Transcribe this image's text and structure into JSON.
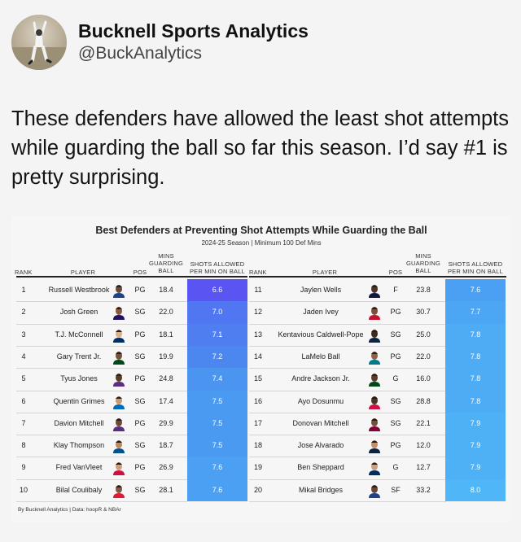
{
  "account": {
    "display_name": "Bucknell Sports Analytics",
    "handle": "@BuckAnalytics"
  },
  "tweet": {
    "text": "These defenders have allowed the least shot attempts while guarding the ball so far this season. I’d say #1 is pretty surprising."
  },
  "table": {
    "title": "Best Defenders at Preventing Shot Attempts While Guarding the Ball",
    "subtitle": "2024-25 Season | Minimum 100 Def Mins",
    "columns": {
      "rank": "RANK",
      "player": "PLAYER",
      "pos": "POS",
      "mins": "MINS GUARDING BALL",
      "shots": "SHOTS ALLOWED PER MIN ON BALL"
    },
    "footer": "By Bucknell Analytics | Data: hoopR & NBAr",
    "colors": {
      "best": "#5a55f2",
      "mid": "#4a8ff0",
      "worst": "#4fb7f7"
    },
    "rows": [
      {
        "rank": "1",
        "player": "Russell Westbrook",
        "pos": "PG",
        "mins": "18.4",
        "shots": "6.6"
      },
      {
        "rank": "2",
        "player": "Josh Green",
        "pos": "SG",
        "mins": "22.0",
        "shots": "7.0"
      },
      {
        "rank": "3",
        "player": "T.J. McConnell",
        "pos": "PG",
        "mins": "18.1",
        "shots": "7.1"
      },
      {
        "rank": "4",
        "player": "Gary Trent Jr.",
        "pos": "SG",
        "mins": "19.9",
        "shots": "7.2"
      },
      {
        "rank": "5",
        "player": "Tyus Jones",
        "pos": "PG",
        "mins": "24.8",
        "shots": "7.4"
      },
      {
        "rank": "6",
        "player": "Quentin Grimes",
        "pos": "SG",
        "mins": "17.4",
        "shots": "7.5"
      },
      {
        "rank": "7",
        "player": "Davion Mitchell",
        "pos": "PG",
        "mins": "29.9",
        "shots": "7.5"
      },
      {
        "rank": "8",
        "player": "Klay Thompson",
        "pos": "SG",
        "mins": "18.7",
        "shots": "7.5"
      },
      {
        "rank": "9",
        "player": "Fred VanVleet",
        "pos": "PG",
        "mins": "26.9",
        "shots": "7.6"
      },
      {
        "rank": "10",
        "player": "Bilal Coulibaly",
        "pos": "SG",
        "mins": "28.1",
        "shots": "7.6"
      },
      {
        "rank": "11",
        "player": "Jaylen Wells",
        "pos": "F",
        "mins": "23.8",
        "shots": "7.6"
      },
      {
        "rank": "12",
        "player": "Jaden Ivey",
        "pos": "PG",
        "mins": "30.7",
        "shots": "7.7"
      },
      {
        "rank": "13",
        "player": "Kentavious Caldwell-Pope",
        "pos": "SG",
        "mins": "25.0",
        "shots": "7.8"
      },
      {
        "rank": "14",
        "player": "LaMelo Ball",
        "pos": "PG",
        "mins": "22.0",
        "shots": "7.8"
      },
      {
        "rank": "15",
        "player": "Andre Jackson Jr.",
        "pos": "G",
        "mins": "16.0",
        "shots": "7.8"
      },
      {
        "rank": "16",
        "player": "Ayo Dosunmu",
        "pos": "SG",
        "mins": "28.8",
        "shots": "7.8"
      },
      {
        "rank": "17",
        "player": "Donovan Mitchell",
        "pos": "SG",
        "mins": "22.1",
        "shots": "7.9"
      },
      {
        "rank": "18",
        "player": "Jose Alvarado",
        "pos": "PG",
        "mins": "12.0",
        "shots": "7.9"
      },
      {
        "rank": "19",
        "player": "Ben Sheppard",
        "pos": "G",
        "mins": "12.7",
        "shots": "7.9"
      },
      {
        "rank": "20",
        "player": "Mikal Bridges",
        "pos": "SF",
        "mins": "33.2",
        "shots": "8.0"
      }
    ]
  }
}
